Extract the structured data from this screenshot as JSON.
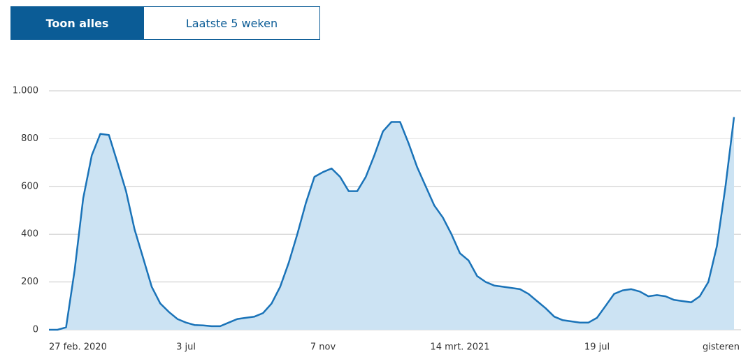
{
  "buttons": [
    "Toon alles",
    "Laatste 5 weken"
  ],
  "chart_data": {
    "type": "area",
    "categories": [
      "27 feb. 2020",
      null,
      null,
      null,
      null,
      null,
      null,
      null,
      null,
      null,
      null,
      null,
      null,
      null,
      null,
      null,
      "3 jul",
      null,
      null,
      null,
      null,
      null,
      null,
      null,
      null,
      null,
      null,
      null,
      null,
      null,
      null,
      null,
      "7 nov",
      null,
      null,
      null,
      null,
      null,
      null,
      null,
      null,
      null,
      null,
      null,
      null,
      null,
      null,
      null,
      "14 mrt. 2021",
      null,
      null,
      null,
      null,
      null,
      null,
      null,
      null,
      null,
      null,
      null,
      null,
      null,
      null,
      null,
      "19 jul",
      null,
      null,
      null,
      null,
      null,
      null,
      null,
      null,
      null,
      null,
      null,
      null,
      null,
      null,
      null,
      "gisteren"
    ],
    "values": [
      0,
      0,
      10,
      250,
      550,
      730,
      820,
      815,
      700,
      580,
      420,
      300,
      180,
      110,
      75,
      45,
      30,
      20,
      18,
      15,
      15,
      30,
      45,
      50,
      55,
      70,
      110,
      180,
      280,
      400,
      530,
      640,
      660,
      675,
      640,
      580,
      580,
      640,
      730,
      830,
      870,
      870,
      780,
      680,
      600,
      520,
      470,
      400,
      320,
      290,
      225,
      200,
      185,
      180,
      175,
      170,
      150,
      120,
      90,
      55,
      40,
      35,
      30,
      30,
      50,
      100,
      150,
      165,
      170,
      160,
      140,
      145,
      140,
      125,
      120,
      115,
      140,
      200,
      350,
      600,
      890
    ],
    "color": "#1a73b8",
    "ylim": [
      0,
      1000
    ],
    "yticks": [
      0,
      200,
      400,
      600,
      800,
      {
        "value": 1000,
        "label": "1.000"
      }
    ],
    "grid": true
  }
}
